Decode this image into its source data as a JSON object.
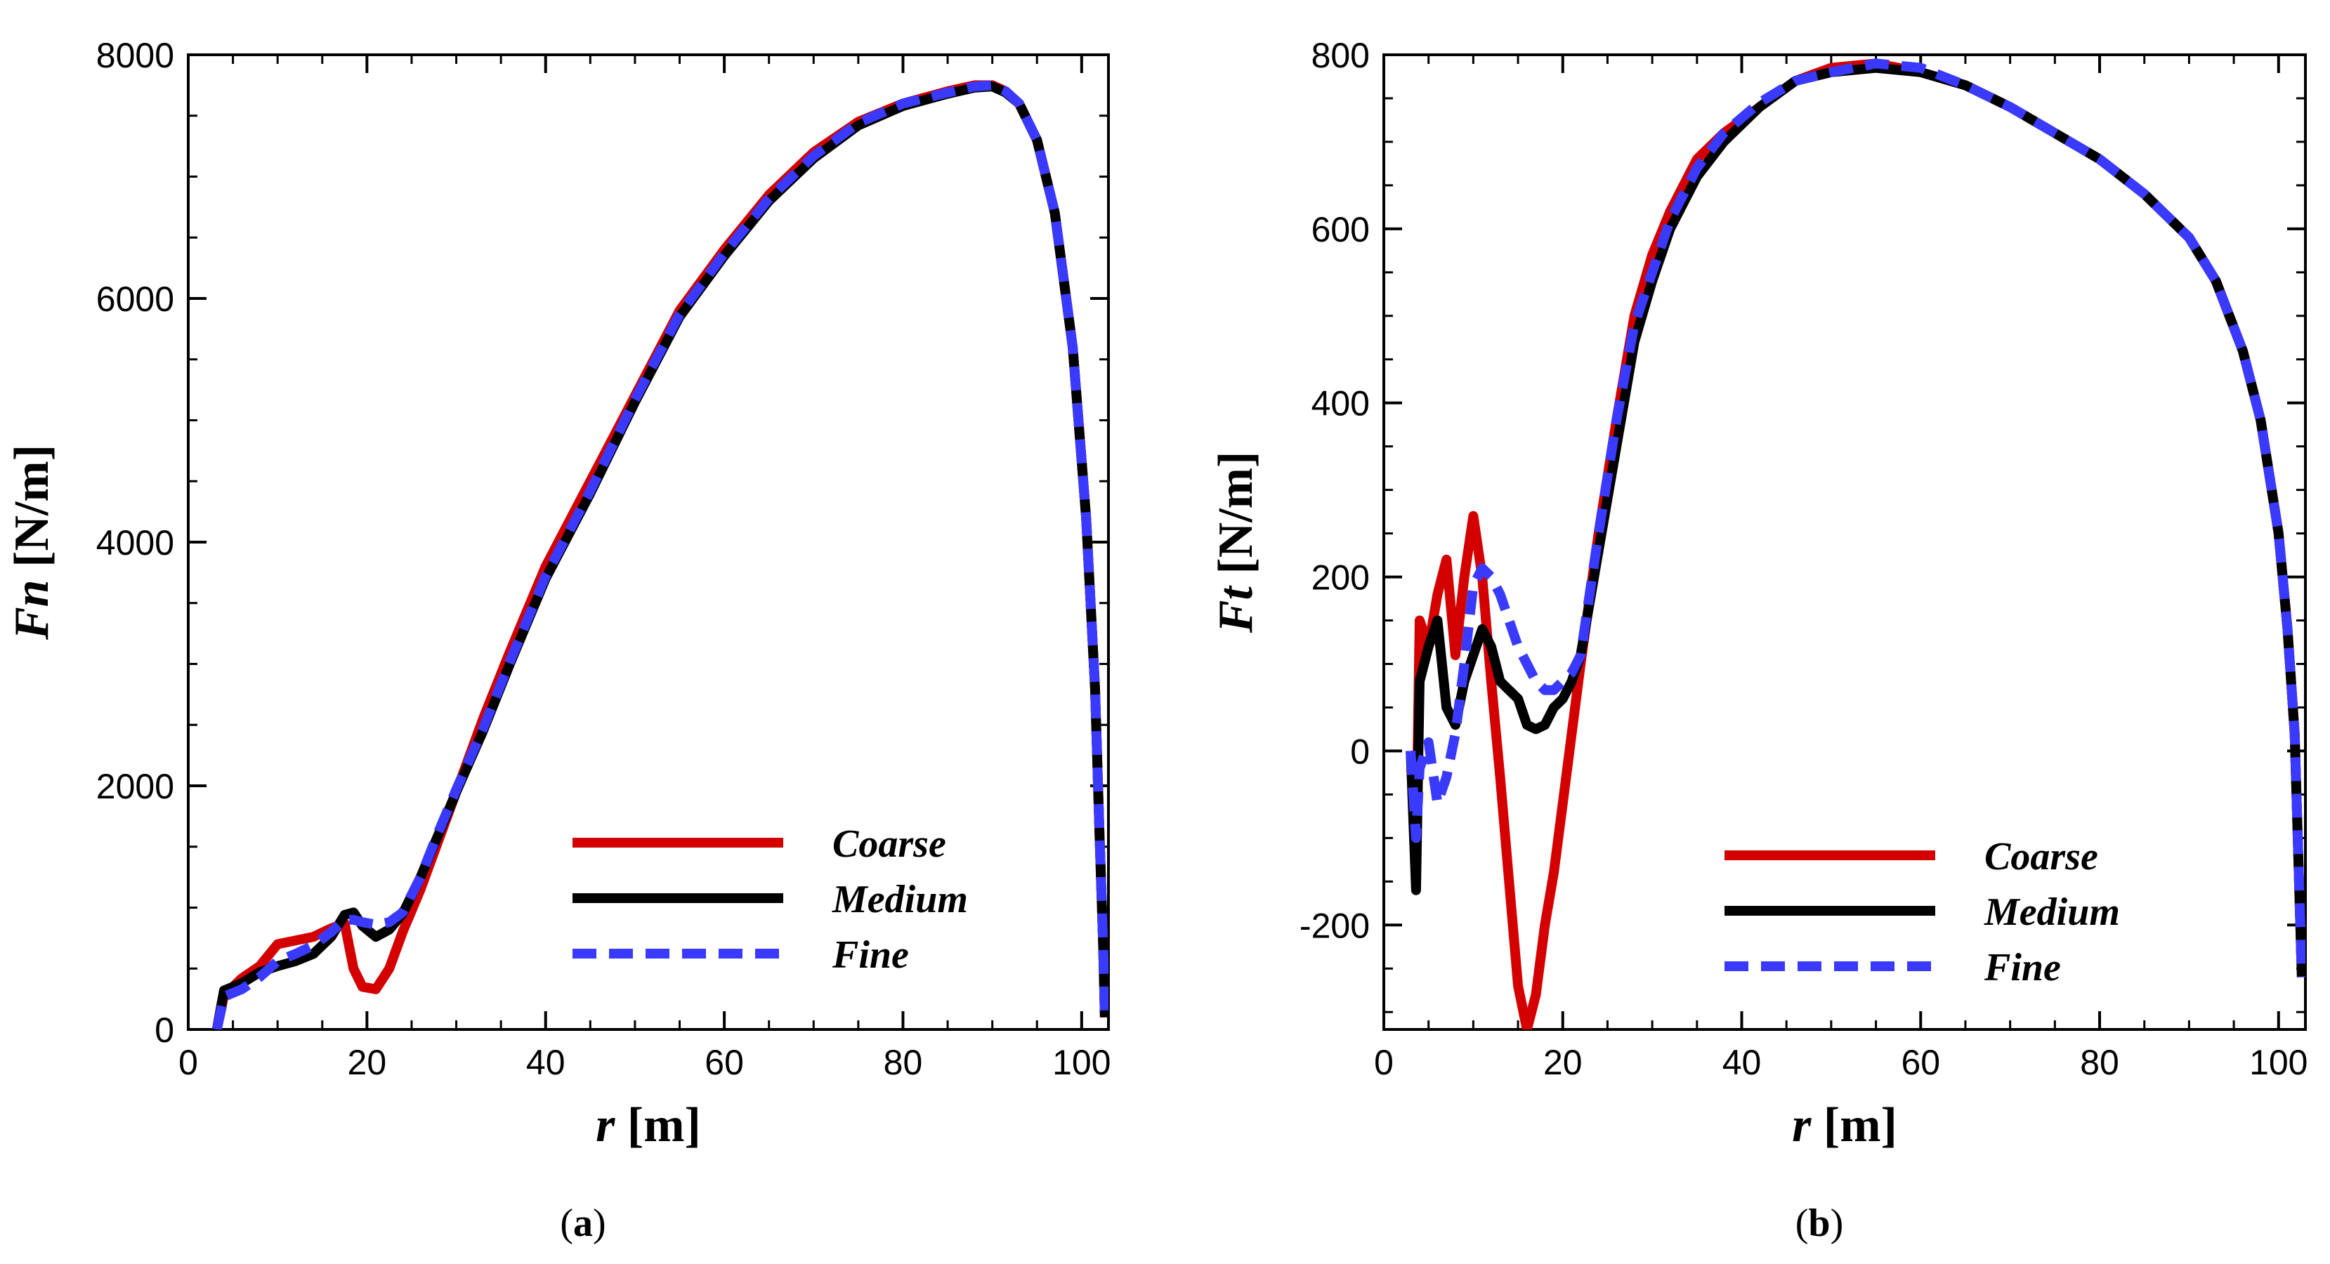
{
  "chart_data": [
    {
      "type": "line",
      "panel_label": "a",
      "xlabel_var": "r",
      "xlabel_unit": "[m]",
      "ylabel_var": "Fn",
      "ylabel_unit": "[N/m]",
      "xlim": [
        0,
        103
      ],
      "ylim": [
        0,
        8000
      ],
      "xticks": [
        0,
        20,
        40,
        60,
        80,
        100
      ],
      "yticks": [
        0,
        2000,
        4000,
        6000,
        8000
      ],
      "grid": false,
      "legend_position": "lower-right",
      "series": [
        {
          "name": "Coarse",
          "color": "#d40000",
          "style": "solid",
          "x": [
            3.2,
            4,
            6,
            8,
            10,
            12,
            14,
            16,
            17.5,
            18.5,
            19.5,
            21,
            22.5,
            24,
            26,
            28,
            30,
            33,
            36,
            40,
            45,
            50,
            55,
            60,
            65,
            70,
            75,
            80,
            85,
            88,
            90,
            91.5,
            93,
            95,
            97,
            99,
            100.5,
            101.5,
            102,
            102.4,
            102.6
          ],
          "y": [
            0,
            280,
            420,
            520,
            700,
            730,
            760,
            830,
            870,
            500,
            350,
            330,
            500,
            800,
            1150,
            1550,
            1950,
            2550,
            3100,
            3800,
            4500,
            5200,
            5900,
            6400,
            6850,
            7200,
            7450,
            7600,
            7700,
            7750,
            7750,
            7700,
            7600,
            7300,
            6700,
            5600,
            4200,
            2800,
            1600,
            700,
            100
          ]
        },
        {
          "name": "Medium",
          "color": "#000000",
          "style": "solid",
          "x": [
            3.2,
            4,
            6,
            8,
            10,
            12,
            14,
            16,
            17.5,
            18.5,
            19.5,
            21,
            22.5,
            24,
            26,
            28,
            30,
            33,
            36,
            40,
            45,
            50,
            55,
            60,
            65,
            70,
            75,
            80,
            85,
            88,
            90,
            91.5,
            93,
            95,
            97,
            99,
            100.5,
            101.5,
            102,
            102.4,
            102.6
          ],
          "y": [
            0,
            320,
            380,
            470,
            520,
            560,
            620,
            760,
            940,
            960,
            850,
            760,
            820,
            950,
            1250,
            1600,
            1950,
            2450,
            3000,
            3700,
            4400,
            5150,
            5850,
            6350,
            6800,
            7150,
            7420,
            7580,
            7680,
            7730,
            7740,
            7690,
            7600,
            7300,
            6700,
            5600,
            4200,
            2800,
            1600,
            700,
            100
          ]
        },
        {
          "name": "Fine",
          "color": "#3a3aff",
          "style": "dashed",
          "x": [
            3.2,
            4,
            6,
            8,
            10,
            12,
            14,
            16,
            17.5,
            18.5,
            19.5,
            21,
            22.5,
            24,
            26,
            28,
            30,
            33,
            36,
            40,
            45,
            50,
            55,
            60,
            65,
            70,
            75,
            80,
            85,
            88,
            90,
            91.5,
            93,
            95,
            97,
            99,
            100.5,
            101.5,
            102,
            102.4,
            102.6
          ],
          "y": [
            0,
            270,
            330,
            430,
            560,
            620,
            690,
            800,
            900,
            900,
            880,
            860,
            880,
            960,
            1250,
            1620,
            1970,
            2470,
            3020,
            3720,
            4420,
            5170,
            5870,
            6370,
            6820,
            7170,
            7440,
            7600,
            7690,
            7740,
            7750,
            7700,
            7600,
            7300,
            6700,
            5600,
            4200,
            2800,
            1600,
            700,
            100
          ]
        }
      ]
    },
    {
      "type": "line",
      "panel_label": "b",
      "xlabel_var": "r",
      "xlabel_unit": "[m]",
      "ylabel_var": "Ft",
      "ylabel_unit": "[N/m]",
      "xlim": [
        0,
        103
      ],
      "ylim": [
        -320,
        800
      ],
      "xticks": [
        0,
        20,
        40,
        60,
        80,
        100
      ],
      "yticks": [
        -200,
        0,
        200,
        400,
        600,
        800
      ],
      "grid": false,
      "legend_position": "lower-right",
      "series": [
        {
          "name": "Coarse",
          "color": "#d40000",
          "style": "solid",
          "x": [
            3,
            3.6,
            4,
            5,
            6,
            7,
            8,
            9,
            10,
            11,
            12,
            13,
            14,
            15,
            16,
            17,
            18,
            19,
            20,
            21,
            22,
            24,
            26,
            28,
            30,
            32,
            35,
            38,
            42,
            46,
            50,
            55,
            60,
            65,
            70,
            75,
            80,
            85,
            90,
            93,
            96,
            98,
            100,
            101,
            101.8,
            102.2,
            102.6
          ],
          "y": [
            0,
            -120,
            150,
            120,
            180,
            220,
            110,
            200,
            270,
            200,
            80,
            -30,
            -150,
            -270,
            -320,
            -280,
            -200,
            -140,
            -60,
            20,
            100,
            250,
            380,
            500,
            570,
            620,
            680,
            710,
            740,
            770,
            785,
            790,
            780,
            765,
            740,
            710,
            680,
            640,
            590,
            540,
            460,
            380,
            250,
            140,
            20,
            -120,
            -260
          ]
        },
        {
          "name": "Medium",
          "color": "#000000",
          "style": "solid",
          "x": [
            3,
            3.6,
            4,
            5,
            6,
            7,
            8,
            9,
            10,
            11,
            12,
            13,
            14,
            15,
            16,
            17,
            18,
            19,
            20,
            21,
            22,
            24,
            26,
            28,
            30,
            32,
            35,
            38,
            42,
            46,
            50,
            55,
            60,
            65,
            70,
            75,
            80,
            85,
            90,
            93,
            96,
            98,
            100,
            101,
            101.8,
            102.2,
            102.6
          ],
          "y": [
            0,
            -160,
            80,
            120,
            150,
            50,
            30,
            80,
            110,
            140,
            120,
            80,
            70,
            60,
            30,
            25,
            30,
            50,
            60,
            80,
            110,
            230,
            350,
            470,
            540,
            600,
            660,
            700,
            740,
            770,
            780,
            785,
            780,
            765,
            740,
            710,
            680,
            640,
            590,
            540,
            460,
            380,
            250,
            140,
            20,
            -120,
            -260
          ]
        },
        {
          "name": "Fine",
          "color": "#3a3aff",
          "style": "dashed",
          "x": [
            3,
            3.6,
            4,
            5,
            6,
            7,
            8,
            9,
            10,
            11,
            12,
            13,
            14,
            15,
            16,
            17,
            18,
            19,
            20,
            21,
            22,
            24,
            26,
            28,
            30,
            32,
            35,
            38,
            42,
            46,
            50,
            55,
            60,
            65,
            70,
            75,
            80,
            85,
            90,
            93,
            96,
            98,
            100,
            101,
            101.8,
            102.2,
            102.6
          ],
          "y": [
            0,
            -100,
            -20,
            10,
            -60,
            -30,
            20,
            100,
            190,
            210,
            200,
            180,
            150,
            120,
            100,
            80,
            70,
            70,
            80,
            90,
            110,
            250,
            380,
            490,
            550,
            610,
            670,
            710,
            745,
            770,
            780,
            790,
            785,
            765,
            740,
            710,
            680,
            640,
            590,
            540,
            460,
            380,
            250,
            140,
            20,
            -120,
            -260
          ]
        }
      ]
    }
  ]
}
